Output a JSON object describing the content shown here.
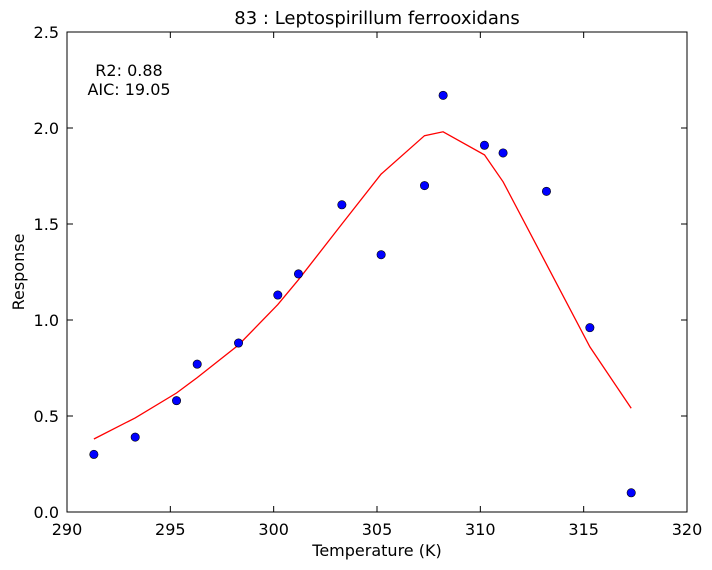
{
  "chart_data": {
    "type": "scatter",
    "title": "83 : Leptospirillum ferrooxidans",
    "xlabel": "Temperature (K)",
    "ylabel": "Response",
    "xlim": [
      290,
      320
    ],
    "ylim": [
      0.0,
      2.5
    ],
    "xticks": [
      "290",
      "295",
      "300",
      "305",
      "310",
      "315",
      "320"
    ],
    "yticks": [
      "0.0",
      "0.5",
      "1.0",
      "1.5",
      "2.0",
      "2.5"
    ],
    "annotations": [
      "R2: 0.88",
      "AIC: 19.05"
    ],
    "grid": false,
    "series": [
      {
        "kind": "points",
        "color": "#0000ff",
        "x": [
          291.3,
          293.3,
          295.3,
          296.3,
          298.3,
          300.2,
          301.2,
          303.3,
          305.2,
          307.3,
          308.2,
          310.2,
          311.1,
          313.2,
          315.3,
          317.3
        ],
        "y": [
          0.3,
          0.39,
          0.58,
          0.77,
          0.88,
          1.13,
          1.24,
          1.6,
          1.34,
          1.7,
          2.17,
          1.91,
          1.87,
          1.67,
          0.96,
          0.1
        ]
      },
      {
        "kind": "line",
        "color": "#ff0000",
        "x": [
          291.3,
          293.3,
          295.3,
          296.3,
          298.3,
          300.2,
          301.2,
          303.3,
          305.2,
          307.3,
          308.2,
          310.2,
          311.1,
          313.2,
          315.3,
          317.3
        ],
        "y": [
          0.38,
          0.49,
          0.62,
          0.7,
          0.87,
          1.08,
          1.21,
          1.5,
          1.76,
          1.96,
          1.98,
          1.86,
          1.72,
          1.29,
          0.86,
          0.54
        ]
      }
    ]
  }
}
